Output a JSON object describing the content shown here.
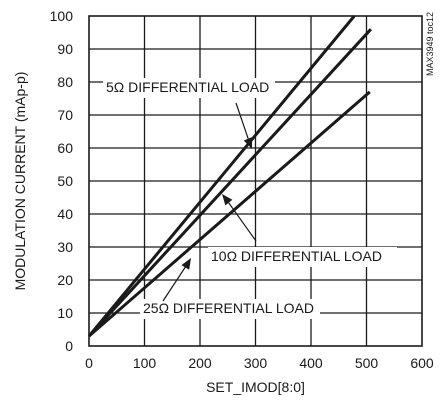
{
  "chart_data": {
    "type": "line",
    "xlabel": "SET_IMOD[8:0]",
    "ylabel": "MODULATION CURRENT (mAp-p)",
    "xlim": [
      0,
      600
    ],
    "ylim": [
      0,
      100
    ],
    "xticks": [
      0,
      100,
      200,
      300,
      400,
      500,
      600
    ],
    "yticks": [
      0,
      10,
      20,
      30,
      40,
      50,
      60,
      70,
      80,
      90,
      100
    ],
    "grid": true,
    "watermark": "MAX3949 toc12",
    "series": [
      {
        "name": "5Ω DIFFERENTIAL LOAD",
        "x": [
          0,
          478
        ],
        "y": [
          3,
          100
        ]
      },
      {
        "name": "10Ω DIFFERENTIAL LOAD",
        "x": [
          0,
          508
        ],
        "y": [
          3,
          96
        ]
      },
      {
        "name": "25Ω DIFFERENTIAL LOAD",
        "x": [
          0,
          506
        ],
        "y": [
          3,
          77
        ]
      }
    ],
    "annotations": [
      {
        "text": "5Ω DIFFERENTIAL LOAD",
        "series": 0
      },
      {
        "text": "10Ω DIFFERENTIAL LOAD",
        "series": 1
      },
      {
        "text": "25Ω DIFFERENTIAL LOAD",
        "series": 2
      }
    ]
  }
}
